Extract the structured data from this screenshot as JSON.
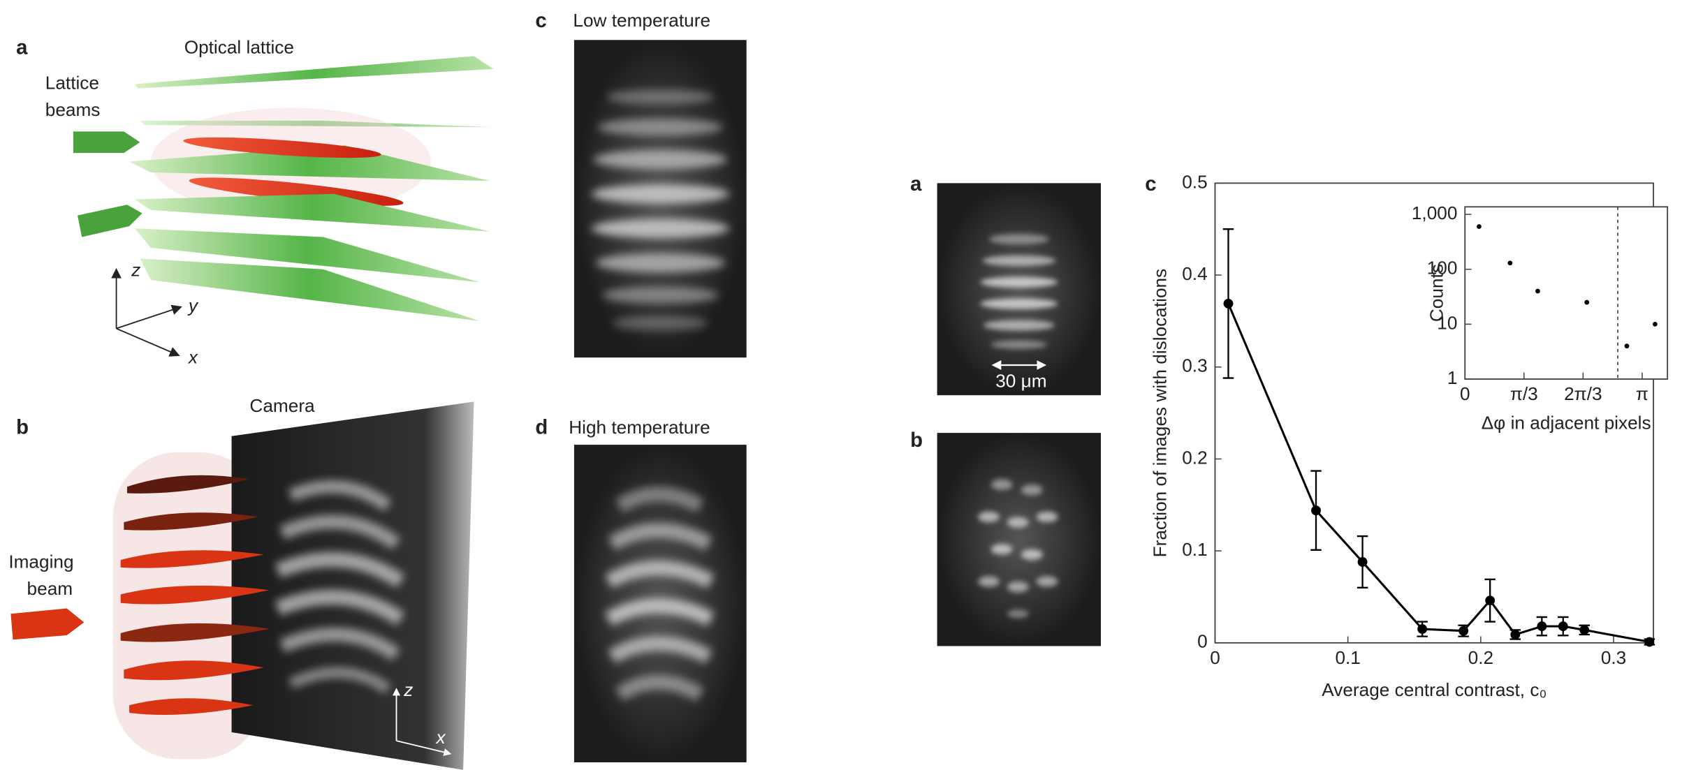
{
  "left_figure": {
    "panel_a": {
      "label": "a",
      "title": "Optical lattice",
      "beams_label": [
        "Lattice",
        "beams"
      ],
      "axes": [
        "z",
        "y",
        "x"
      ]
    },
    "panel_b": {
      "label": "b",
      "camera": "Camera",
      "imaging_beam": [
        "Imaging",
        "beam"
      ],
      "axes": [
        "z",
        "x"
      ]
    },
    "panel_c": {
      "label": "c",
      "title": "Low temperature"
    },
    "panel_d": {
      "label": "d",
      "title": "High temperature"
    }
  },
  "right_figure": {
    "panel_a": {
      "label": "a",
      "scale_bar": "30 μm"
    },
    "panel_b": {
      "label": "b"
    },
    "panel_c": {
      "label": "c"
    }
  },
  "chart_data": [
    {
      "type": "line",
      "xlabel": "Average central contrast, c₀",
      "ylabel": "Fraction of images with dislocations",
      "x": [
        0.01,
        0.076,
        0.111,
        0.156,
        0.187,
        0.207,
        0.226,
        0.246,
        0.262,
        0.278,
        0.327
      ],
      "values": [
        0.369,
        0.144,
        0.088,
        0.015,
        0.013,
        0.046,
        0.009,
        0.018,
        0.018,
        0.014,
        0.001
      ],
      "errors": [
        0.081,
        0.043,
        0.028,
        0.008,
        0.006,
        0.023,
        0.005,
        0.01,
        0.01,
        0.005,
        0.003
      ],
      "color": "#000000",
      "xlim": [
        0,
        0.33
      ],
      "xticks": [
        0,
        0.1,
        0.2,
        0.3
      ],
      "ylim": [
        0,
        0.5
      ],
      "yticks": [
        0,
        0.1,
        0.2,
        0.3,
        0.4,
        0.5
      ]
    },
    {
      "type": "scatter",
      "xlabel": "Δφ in adjacent pixels",
      "ylabel": "Counts",
      "x": [
        0.25,
        0.8,
        1.29,
        2.16,
        2.87,
        3.37
      ],
      "values": [
        600,
        130,
        40,
        25,
        4,
        10
      ],
      "color": "#000000",
      "ylog": true,
      "vline": 2.71,
      "xlim": [
        0,
        3.59
      ],
      "xticks": [
        0,
        {
          "value": 1.047,
          "label": "π/3"
        },
        {
          "value": 2.094,
          "label": "2π/3"
        },
        {
          "value": 3.142,
          "label": "π"
        }
      ],
      "ylim": [
        1,
        1000
      ],
      "yticks": [
        1,
        10,
        100,
        {
          "value": 1000,
          "label": "1,000"
        }
      ]
    }
  ]
}
